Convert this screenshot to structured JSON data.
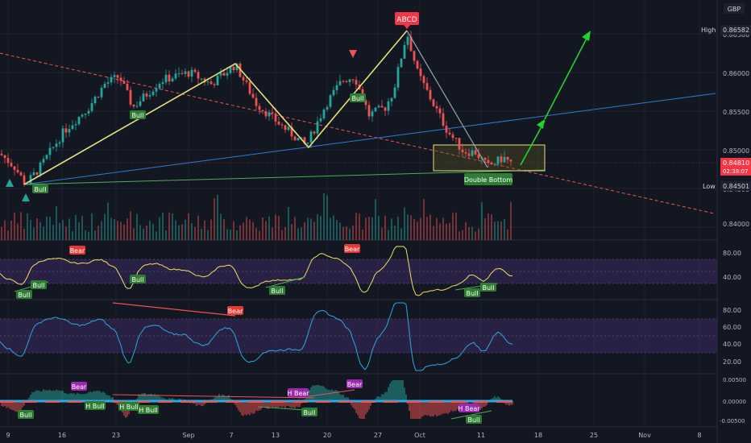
{
  "header": {
    "currency": "GBP"
  },
  "price_axis": {
    "ticks": [
      "0.86500",
      "0.86000",
      "0.85500",
      "0.85000",
      "0.84500",
      "0.84000"
    ],
    "tick_values": [
      0.865,
      0.86,
      0.855,
      0.85,
      0.845,
      0.84
    ],
    "high_label": "High",
    "high_value": "0.86582",
    "low_label": "Low",
    "low_value": "0.84501",
    "current_price": "0.84810",
    "countdown": "02:38:07"
  },
  "time_axis": {
    "labels": [
      "9",
      "16",
      "23",
      "Sep",
      "7",
      "13",
      "20",
      "27",
      "Oct",
      "11",
      "18",
      "25",
      "Nov",
      "8"
    ]
  },
  "annotations": {
    "abcd": "ABCD",
    "double_bottom": "Double Bottom",
    "bull": "Bull",
    "bear": "Bear",
    "h_bull": "H Bull",
    "h_bear": "H Bear"
  },
  "panes": {
    "rsi1_ticks": [
      "80.00",
      "40.00"
    ],
    "rsi2_ticks": [
      "80.00",
      "60.00",
      "40.00",
      "20.00"
    ],
    "macd_ticks": [
      "0.00500",
      "0.00000",
      "-0.00500"
    ]
  },
  "colors": {
    "background": "#131722",
    "bull_candle": "#26a69a",
    "bear_candle": "#ef5350",
    "pattern_line": "#e6e07a",
    "trend_blue": "#2e7bd1",
    "trend_green": "#4caf50",
    "arrow_green": "#22d32a",
    "rsi_yellow": "#f0e060",
    "rsi_blue": "#2fa7e0",
    "band_purple": "#3a2a60"
  },
  "chart_data": {
    "type": "candlestick",
    "price_range": [
      0.838,
      0.866
    ],
    "high": 0.86582,
    "low": 0.84501,
    "last": 0.8481,
    "path_points": [
      [
        0,
        0.8495
      ],
      [
        18,
        0.8478
      ],
      [
        32,
        0.8455
      ],
      [
        50,
        0.8478
      ],
      [
        80,
        0.8525
      ],
      [
        110,
        0.8555
      ],
      [
        130,
        0.8585
      ],
      [
        148,
        0.8595
      ],
      [
        165,
        0.8555
      ],
      [
        200,
        0.859
      ],
      [
        235,
        0.86
      ],
      [
        262,
        0.8585
      ],
      [
        292,
        0.861
      ],
      [
        318,
        0.856
      ],
      [
        345,
        0.8535
      ],
      [
        380,
        0.8505
      ],
      [
        405,
        0.856
      ],
      [
        425,
        0.859
      ],
      [
        440,
        0.8595
      ],
      [
        458,
        0.8545
      ],
      [
        478,
        0.8555
      ],
      [
        488,
        0.8575
      ],
      [
        505,
        0.8652
      ],
      [
        518,
        0.86
      ],
      [
        535,
        0.8565
      ],
      [
        555,
        0.8525
      ],
      [
        575,
        0.8498
      ],
      [
        590,
        0.8497
      ],
      [
        605,
        0.8478
      ],
      [
        625,
        0.849
      ],
      [
        636,
        0.8481
      ]
    ]
  }
}
